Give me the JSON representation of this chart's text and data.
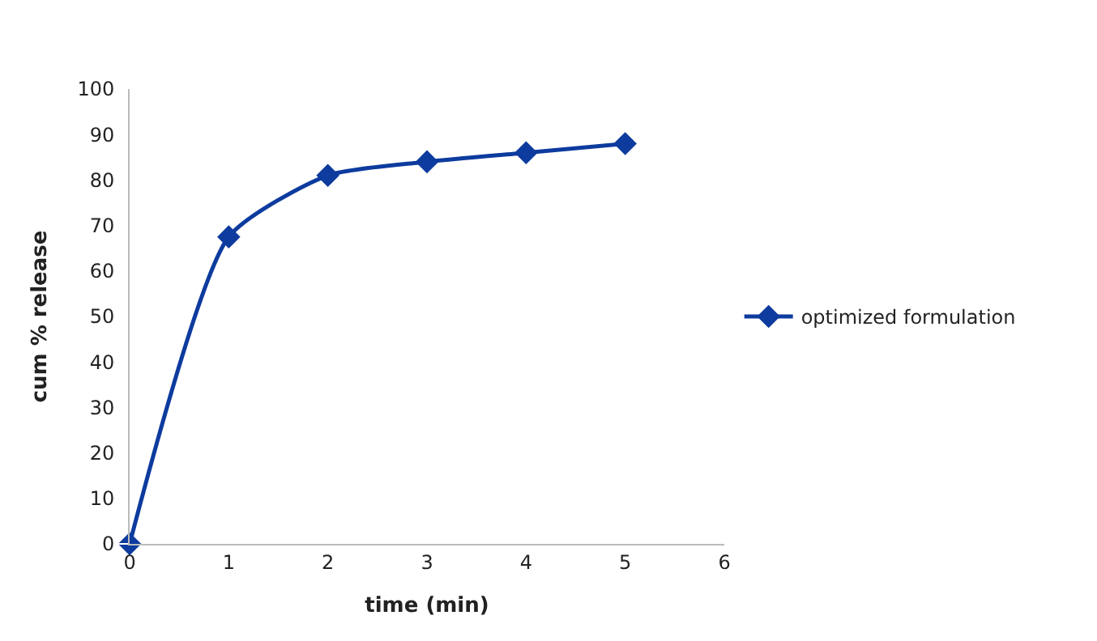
{
  "chart_data": {
    "type": "line",
    "xlabel": "time (min)",
    "ylabel": "cum % release",
    "x": [
      0,
      1,
      2,
      3,
      4,
      5
    ],
    "series": [
      {
        "name": "optimized formulation",
        "color": "#0d3b9e",
        "values": [
          0,
          67.5,
          81,
          84,
          86,
          88
        ]
      }
    ],
    "xlim": [
      0,
      6
    ],
    "xticks": [
      0,
      1,
      2,
      3,
      4,
      5,
      6
    ],
    "ylim": [
      0,
      100
    ],
    "yticks": [
      0,
      10,
      20,
      30,
      40,
      50,
      60,
      70,
      80,
      90,
      100
    ],
    "legend": "right",
    "marker": "diamond",
    "line_style": "solid"
  }
}
